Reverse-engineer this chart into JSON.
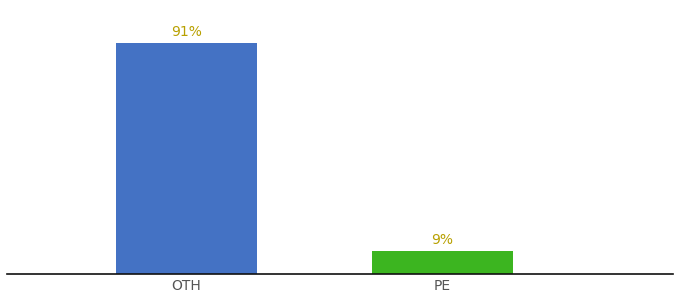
{
  "categories": [
    "OTH",
    "PE"
  ],
  "values": [
    91,
    9
  ],
  "bar_colors": [
    "#4472c4",
    "#3cb520"
  ],
  "label_color": "#b8a000",
  "background_color": "#ffffff",
  "ylim": [
    0,
    105
  ],
  "bar_width": 0.55,
  "label_fontsize": 10,
  "tick_fontsize": 10,
  "value_labels": [
    "91%",
    "9%"
  ]
}
